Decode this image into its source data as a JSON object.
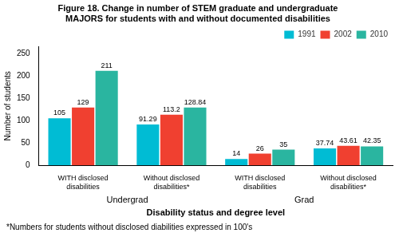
{
  "chart_data": {
    "type": "bar",
    "title": "Figure 18. Change in number of STEM graduate and undergraduate\nMAJORS for students with and without documented disabilities",
    "xlabel": "Disability status and degree level",
    "ylabel": "Number of students",
    "footnote": "*Numbers for students without disclosed diabilities expressed in 100's",
    "annotations": [
      "Undergrad",
      "Grad"
    ],
    "categories": [
      "WITH disclosed\ndisabilities",
      "Without disclosed\ndisabilities*",
      "WITH disclosed\ndisabilities",
      "Without disclosed\ndisabilities*"
    ],
    "series": [
      {
        "name": "1991",
        "color": "#00bcd4",
        "values": [
          105,
          91.29,
          14,
          37.74
        ]
      },
      {
        "name": "2002",
        "color": "#f04030",
        "values": [
          129,
          113.2,
          26,
          43.61
        ]
      },
      {
        "name": "2010",
        "color": "#2ab5a0",
        "values": [
          211,
          128.84,
          35,
          42.35
        ]
      }
    ],
    "ylim": [
      0,
      265
    ],
    "yticks": [
      0,
      50,
      100,
      150,
      200,
      250
    ],
    "grid": false,
    "legend": "upper right",
    "data_labels": true
  }
}
